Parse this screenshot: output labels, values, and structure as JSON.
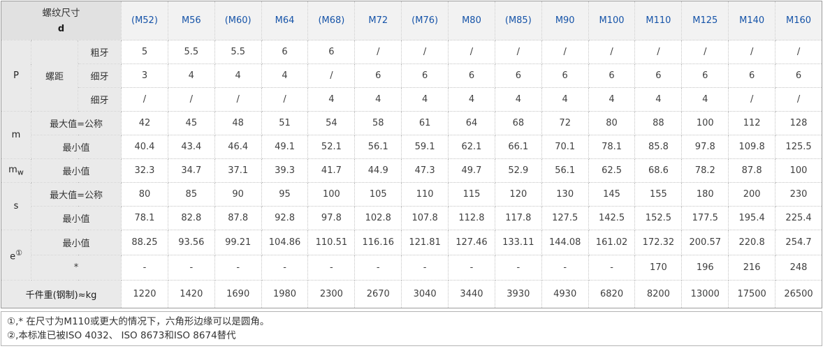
{
  "colors": {
    "header_text_blue": "#1553a8",
    "label_bg": "#eaeaea",
    "corner_bg": "#e1e1e1",
    "header_bg": "#f2f2f2",
    "grid_dotted": "#c2c2c2",
    "outer_border": "#9b9b9b"
  },
  "table": {
    "corner_title": "螺纹尺寸",
    "corner_sub": "d",
    "columns": [
      "(M52)",
      "M56",
      "(M60)",
      "M64",
      "(M68)",
      "M72",
      "(M76)",
      "M80",
      "(M85)",
      "M90",
      "M100",
      "M110",
      "M125",
      "M140",
      "M160"
    ],
    "sections": [
      {
        "id": "P",
        "label_main": "P",
        "group_label": "螺距",
        "rows": [
          {
            "sub": "粗牙",
            "values": [
              "5",
              "5.5",
              "5.5",
              "6",
              "6",
              "/",
              "/",
              "/",
              "/",
              "/",
              "/",
              "/",
              "/",
              "/",
              "/"
            ]
          },
          {
            "sub": "细牙",
            "values": [
              "3",
              "4",
              "4",
              "4",
              "/",
              "6",
              "6",
              "6",
              "6",
              "6",
              "6",
              "6",
              "6",
              "6",
              "6"
            ]
          },
          {
            "sub": "细牙",
            "values": [
              "/",
              "/",
              "/",
              "/",
              "4",
              "4",
              "4",
              "4",
              "4",
              "4",
              "4",
              "4",
              "4",
              "/",
              "/"
            ]
          }
        ]
      },
      {
        "id": "m",
        "label_main": "m",
        "rows": [
          {
            "sub": "最大值=公称",
            "values": [
              "42",
              "45",
              "48",
              "51",
              "54",
              "58",
              "61",
              "64",
              "68",
              "72",
              "80",
              "88",
              "100",
              "112",
              "128"
            ]
          },
          {
            "sub": "最小值",
            "values": [
              "40.4",
              "43.4",
              "46.4",
              "49.1",
              "52.1",
              "56.1",
              "59.1",
              "62.1",
              "66.1",
              "70.1",
              "78.1",
              "85.8",
              "97.8",
              "109.8",
              "125.5"
            ]
          }
        ]
      },
      {
        "id": "mw",
        "label_main": "m",
        "label_subscript": "w",
        "rows": [
          {
            "sub": "最小值",
            "values": [
              "32.3",
              "34.7",
              "37.1",
              "39.3",
              "41.7",
              "44.9",
              "47.3",
              "49.7",
              "52.9",
              "56.1",
              "62.5",
              "68.6",
              "78.2",
              "87.8",
              "100"
            ]
          }
        ]
      },
      {
        "id": "s",
        "label_main": "s",
        "rows": [
          {
            "sub": "最大值=公称",
            "values": [
              "80",
              "85",
              "90",
              "95",
              "100",
              "105",
              "110",
              "115",
              "120",
              "130",
              "145",
              "155",
              "180",
              "200",
              "230"
            ]
          },
          {
            "sub": "最小值",
            "values": [
              "78.1",
              "82.8",
              "87.8",
              "92.8",
              "97.8",
              "102.8",
              "107.8",
              "112.8",
              "117.8",
              "127.5",
              "142.5",
              "152.5",
              "177.5",
              "195.4",
              "225.4"
            ]
          }
        ]
      },
      {
        "id": "e",
        "label_main": "e",
        "label_superscript": "①",
        "rows": [
          {
            "sub": "最小值",
            "values": [
              "88.25",
              "93.56",
              "99.21",
              "104.86",
              "110.51",
              "116.16",
              "121.81",
              "127.46",
              "133.11",
              "144.08",
              "161.02",
              "172.32",
              "200.57",
              "220.8",
              "254.7"
            ]
          },
          {
            "sub": "*",
            "values": [
              "-",
              "-",
              "-",
              "-",
              "-",
              "-",
              "-",
              "-",
              "-",
              "-",
              "-",
              "170",
              "196",
              "216",
              "248"
            ]
          }
        ]
      }
    ],
    "footer_row": {
      "label": "千件重(钢制)≈kg",
      "values": [
        "1220",
        "1420",
        "1690",
        "1980",
        "2300",
        "2670",
        "3040",
        "3440",
        "3930",
        "4930",
        "6820",
        "8200",
        "13000",
        "17500",
        "26500"
      ]
    },
    "footnotes": [
      "①,* 在尺寸为M110或更大的情况下，六角形边缘可以是圆角。",
      "②,本标准已被ISO 4032、 ISO 8673和ISO 8674替代"
    ]
  }
}
